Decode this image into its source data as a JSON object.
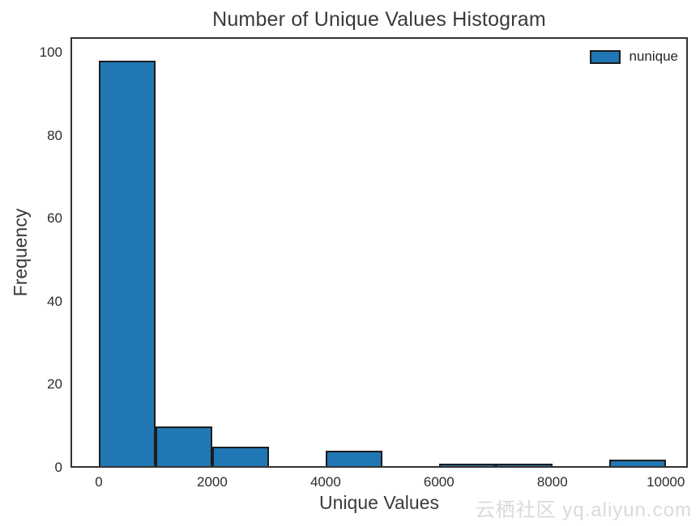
{
  "chart_data": {
    "type": "bar",
    "subtype": "histogram",
    "title": "Number of Unique Values Histogram",
    "xlabel": "Unique Values",
    "ylabel": "Frequency",
    "legend": {
      "label": "nunique",
      "position": "upper right",
      "frame": false
    },
    "bin_edges": [
      0,
      1000,
      2000,
      3000,
      4000,
      5000,
      6000,
      7000,
      8000,
      9000,
      10000
    ],
    "counts": [
      98,
      10,
      5,
      0,
      4,
      0,
      1,
      1,
      0,
      2
    ],
    "xticks": [
      0,
      2000,
      4000,
      6000,
      8000,
      10000
    ],
    "yticks": [
      0,
      20,
      40,
      60,
      80,
      100
    ],
    "xlim": [
      -500,
      10390
    ],
    "ylim": [
      0,
      103.7
    ],
    "grid": false,
    "colors": {
      "bar_fill": "#2077b4",
      "bar_edge": "#1c1c1c",
      "spine": "#333333",
      "text": "#3a3a3a",
      "background": "#ffffff"
    }
  },
  "watermark": {
    "text": "云栖社区 yq.aliyun.com"
  }
}
